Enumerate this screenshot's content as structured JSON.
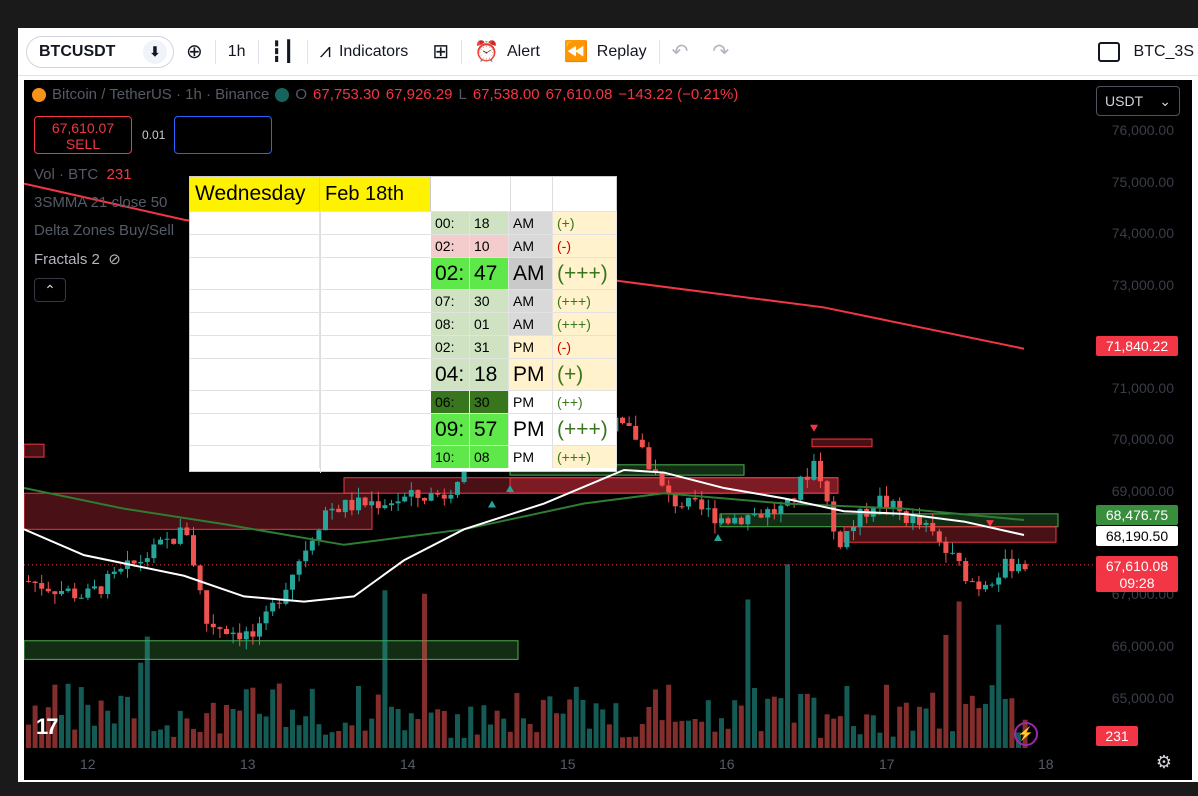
{
  "toolbar": {
    "symbol": "BTCUSDT",
    "interval": "1h",
    "indicators_label": "Indicators",
    "alert_label": "Alert",
    "replay_label": "Replay",
    "layout_name": "BTC_3S"
  },
  "legend": {
    "title": "Bitcoin / TetherUS · 1h · Binance",
    "open_label": "O",
    "open": "67,753.30",
    "high": "67,926.29",
    "low_label": "L",
    "low": "67,538.00",
    "close": "67,610.08",
    "change": "−143.22 (−0.21%)"
  },
  "trade": {
    "sell_price": "67,610.07",
    "sell_label": "SELL",
    "spread": "0.01"
  },
  "indicators": [
    {
      "name": "Vol · BTC",
      "value": "231"
    },
    {
      "name": "3SMMA 21 close 50",
      "value": ""
    },
    {
      "name": "Delta Zones Buy/Sell",
      "value": ""
    },
    {
      "name": "Fractals 2",
      "value": ""
    }
  ],
  "currency_select": "USDT",
  "y_axis": [
    "76,000.00",
    "75,000.00",
    "74,000.00",
    "73,000.00",
    "71,000.00",
    "70,000.00",
    "69,000.00",
    "67,000.00",
    "66,000.00",
    "65,000.00"
  ],
  "price_tags": {
    "ma_red": "71,840.22",
    "ma_green": "68,476.75",
    "ma_white": "68,190.50",
    "last_price": "67,610.08",
    "countdown": "09:28",
    "volume": "231"
  },
  "x_axis": [
    "12",
    "13",
    "14",
    "15",
    "16",
    "17",
    "18"
  ],
  "colors": {
    "up": "#26a69a",
    "down": "#ef5350",
    "ma_red": "#f23645",
    "ma_green": "#2e7d32",
    "ma_white": "#ffffff",
    "yellow": "#fff200"
  },
  "schedule": {
    "day": "Wednesday",
    "date": "Feb 18th",
    "rows": [
      {
        "h": "00:",
        "m": "18",
        "p": "AM",
        "s": "(+)",
        "big": false
      },
      {
        "h": "02:",
        "m": "10",
        "p": "AM",
        "s": "(-)",
        "big": false
      },
      {
        "h": "02:",
        "m": "47",
        "p": "AM",
        "s": "(+++)",
        "big": true
      },
      {
        "h": "07:",
        "m": "30",
        "p": "AM",
        "s": "(+++)",
        "big": false
      },
      {
        "h": "08:",
        "m": "01",
        "p": "AM",
        "s": "(+++)",
        "big": false
      },
      {
        "h": "02:",
        "m": "31",
        "p": "PM",
        "s": "(-)",
        "big": false
      },
      {
        "h": "04:",
        "m": "18",
        "p": "PM",
        "s": "(+)",
        "big": true
      },
      {
        "h": "06:",
        "m": "30",
        "p": "PM",
        "s": "(++)",
        "big": false
      },
      {
        "h": "09:",
        "m": "57",
        "p": "PM",
        "s": "(+++)",
        "big": true
      },
      {
        "h": "10:",
        "m": "08",
        "p": "PM",
        "s": "(+++)",
        "big": false
      }
    ]
  }
}
